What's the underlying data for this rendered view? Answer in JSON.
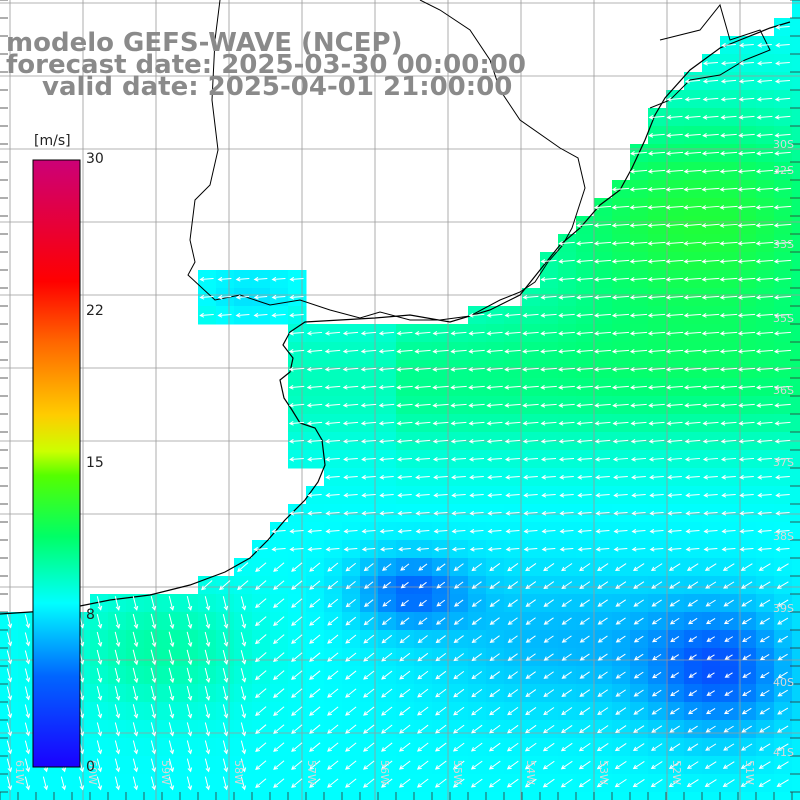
{
  "title": {
    "line1": "modelo GEFS-WAVE (NCEP)",
    "line2": "forecast date: 2025-03-30 00:00:00",
    "line3": "valid date: 2025-04-01 21:00:00"
  },
  "colorbar": {
    "unit": "[m/s]",
    "ticks": [
      "30",
      "22",
      "15",
      "8",
      "0"
    ],
    "min": 0,
    "max": 30
  },
  "grid": {
    "lon_labels": [
      "61W",
      "60W",
      "59W",
      "58W",
      "57W",
      "56W",
      "55W",
      "54W",
      "53W",
      "52W",
      "51W"
    ],
    "lat_labels": [
      "30S",
      "32S",
      "33S",
      "35S",
      "36S",
      "37S",
      "38S",
      "39S",
      "40S",
      "41S"
    ]
  },
  "colors": {
    "land": "#ffffff",
    "grid_line": "#9a9a9a",
    "coast": "#000000",
    "arrow": "#ffffff",
    "title_text": "#8a8a8a"
  },
  "icons": {
    "wind_arrow": "wind-vector-arrow"
  }
}
